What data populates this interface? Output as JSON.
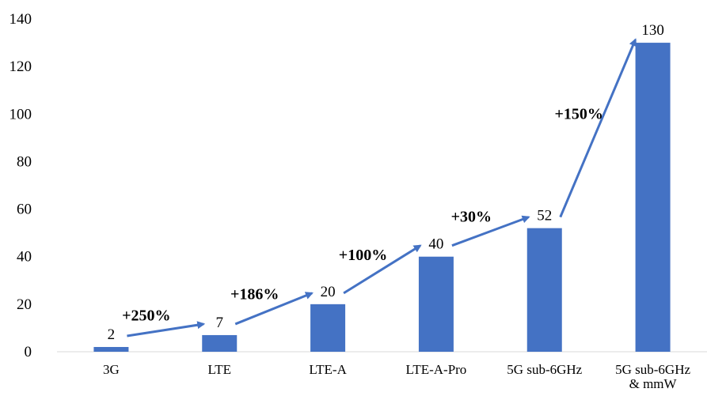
{
  "chart_data": {
    "type": "bar",
    "title": "",
    "xlabel": "",
    "ylabel": "",
    "categories": [
      "3G",
      "LTE",
      "LTE-A",
      "LTE-A-Pro",
      "5G sub-6GHz",
      "5G sub-6GHz & mmW"
    ],
    "category_lines": [
      [
        "3G"
      ],
      [
        "LTE"
      ],
      [
        "LTE-A"
      ],
      [
        "LTE-A-Pro"
      ],
      [
        "5G sub-6GHz"
      ],
      [
        "5G sub-6GHz",
        "& mmW"
      ]
    ],
    "values": [
      2,
      7,
      20,
      40,
      52,
      130
    ],
    "data_labels": [
      "2",
      "7",
      "20",
      "40",
      "52",
      "130"
    ],
    "ylim": [
      0,
      140
    ],
    "yticks": [
      0,
      20,
      40,
      60,
      80,
      100,
      120,
      140
    ],
    "grid": false,
    "legend": "none",
    "bar_color": "#4472C4",
    "arrow_color": "#4472C4",
    "annotations": [
      {
        "text": "+250%",
        "from": 0,
        "to": 1
      },
      {
        "text": "+186%",
        "from": 1,
        "to": 2
      },
      {
        "text": "+100%",
        "from": 2,
        "to": 3
      },
      {
        "text": "+30%",
        "from": 3,
        "to": 4
      },
      {
        "text": "+150%",
        "from": 4,
        "to": 5
      }
    ]
  }
}
